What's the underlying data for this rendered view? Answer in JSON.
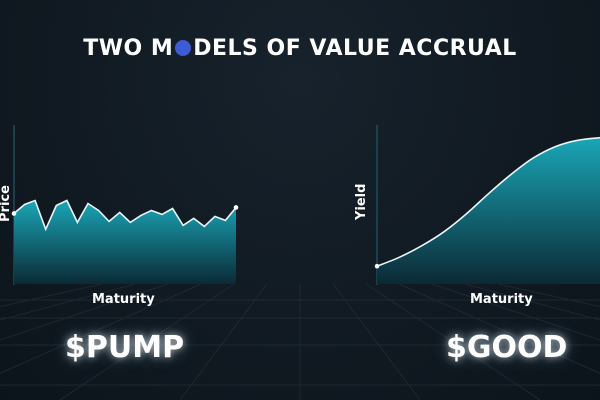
{
  "title": {
    "before": "TWO M",
    "after": "DELS OF VALUE ACCRUAL",
    "dot_color": "#3d5bd6"
  },
  "colors": {
    "accent": "#16aebf",
    "fill_top": "#1aa6b7",
    "fill_bottom": "#0b2a35",
    "background": "#111a22"
  },
  "chart_data": [
    {
      "type": "area",
      "title": "$PUMP",
      "xlabel": "Maturity",
      "ylabel": "Price",
      "x": [
        0,
        1,
        2,
        3,
        4,
        5,
        6,
        7,
        8,
        9,
        10,
        11,
        12,
        13,
        14,
        15,
        16,
        17,
        18,
        19,
        20,
        21
      ],
      "values": [
        0.71,
        0.8,
        0.84,
        0.55,
        0.79,
        0.84,
        0.62,
        0.81,
        0.74,
        0.63,
        0.72,
        0.62,
        0.69,
        0.74,
        0.7,
        0.76,
        0.59,
        0.66,
        0.58,
        0.68,
        0.64,
        0.77
      ],
      "xlim": [
        0,
        21
      ],
      "ylim": [
        0,
        1.6
      ]
    },
    {
      "type": "area",
      "title": "$GOOD",
      "xlabel": "Maturity",
      "ylabel": "Yield",
      "x": [
        0,
        0.1,
        0.2,
        0.3,
        0.4,
        0.5,
        0.6,
        0.7,
        0.8,
        0.9,
        1.0
      ],
      "values": [
        0.14,
        0.21,
        0.3,
        0.41,
        0.55,
        0.71,
        0.86,
        0.99,
        1.08,
        1.13,
        1.15
      ],
      "xlim": [
        0,
        1.0
      ],
      "ylim": [
        0,
        1.25
      ]
    }
  ]
}
